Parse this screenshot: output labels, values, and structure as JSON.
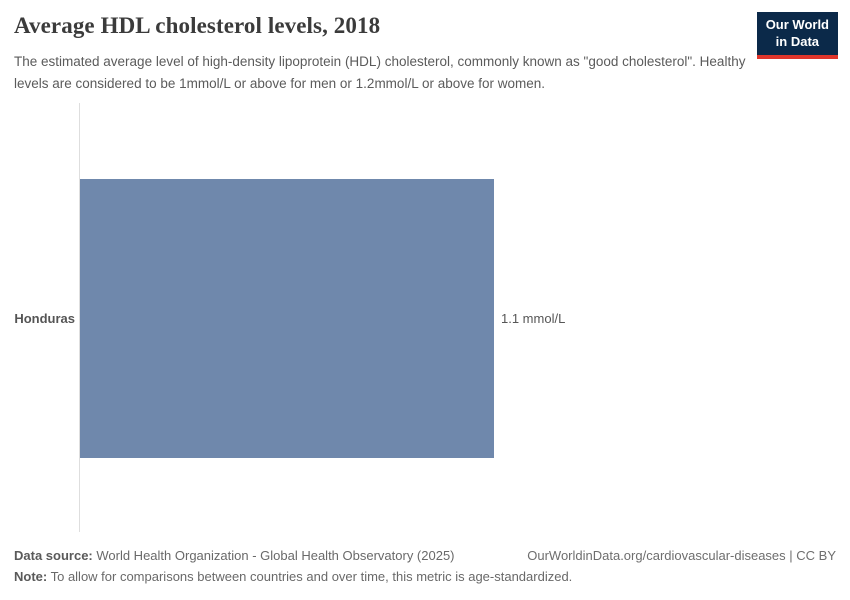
{
  "header": {
    "title": "Average HDL cholesterol levels, 2018",
    "subtitle": "The estimated average level of high-density lipoprotein (HDL) cholesterol, commonly known as \"good cholesterol\". Healthy levels are considered to be 1mmol/L or above for men or 1.2mmol/L or above for women.",
    "logo": {
      "line1": "Our World",
      "line2": "in Data"
    }
  },
  "chart_data": {
    "type": "bar",
    "orientation": "horizontal",
    "title": "Average HDL cholesterol levels, 2018",
    "categories": [
      "Honduras"
    ],
    "values": [
      1.1
    ],
    "unit": "mmol/L",
    "value_labels": [
      "1.1 mmol/L"
    ],
    "xlabel": "",
    "ylabel": "",
    "xlim": [
      0,
      1.1
    ],
    "grid": false,
    "legend": false,
    "bar_color": "#6f88ac"
  },
  "footer": {
    "datasource_label": "Data source:",
    "datasource_value": " World Health Organization - Global Health Observatory (2025)",
    "link": "OurWorldinData.org/cardiovascular-diseases | CC BY",
    "note_label": "Note:",
    "note_value": " To allow for comparisons between countries and over time, this metric is age-standardized."
  },
  "colors": {
    "bar": "#6f88ac",
    "logo_background": "#0b2949",
    "logo_stripe": "#e0352b",
    "axis_line": "#dedede"
  }
}
